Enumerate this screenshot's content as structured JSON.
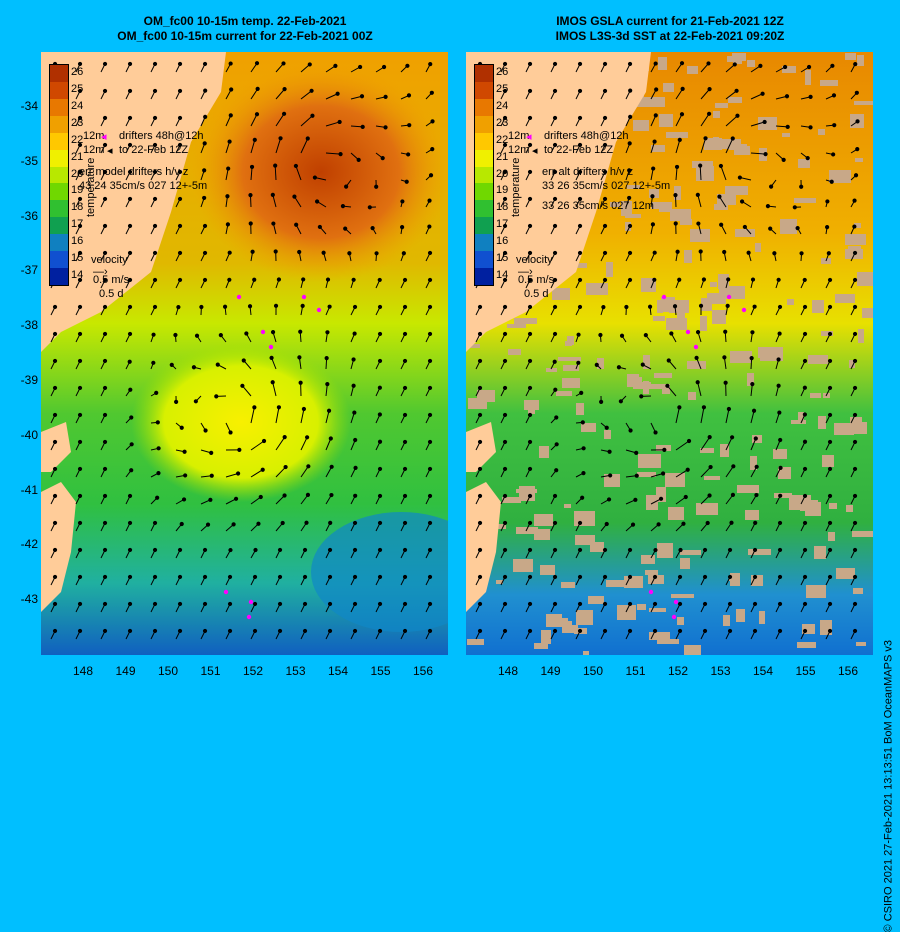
{
  "left_panel": {
    "title_line1": "OM_fc00 10-15m temp. 22-Feb-2021",
    "title_line2": "OM_fc00 10-15m current for 22-Feb-2021 00Z",
    "drifter_line1": "drifters 48h@12h",
    "drifter_line2": "to 22-Feb 12Z",
    "err_line1": "err model drifters h/v z",
    "err_line2": "43 24 35cm/s 027 12+-5m",
    "vel_title": "velocity",
    "vel_scale": "0.5 m/s",
    "vel_time": "0.5 d",
    "temp_label": "temperature",
    "marker_12m": "12m"
  },
  "right_panel": {
    "title_line1": "IMOS GSLA current for 21-Feb-2021 12Z",
    "title_line2": "IMOS L3S-3d SST at 22-Feb-2021 09:20Z",
    "drifter_line1": "drifters 48h@12h",
    "drifter_line2": "to 22-Feb 12Z",
    "err_line1": "err alt drifters h/v z",
    "err_line2": "33 26 35cm/s 027 12+-5m",
    "err_line3": "33 26 35cm/s 027 12m",
    "vel_title": "velocity",
    "vel_scale": "0.5 m/s",
    "vel_time": "0.5 d",
    "temp_label": "temperature",
    "marker_12m": "12m"
  },
  "legend_ticks": [
    "26",
    "25",
    "24",
    "23",
    "22",
    "21",
    "20",
    "19",
    "18",
    "17",
    "16",
    "15",
    "14"
  ],
  "legend_colors": [
    "#b03000",
    "#d04800",
    "#e87800",
    "#f0a000",
    "#ffc800",
    "#f0f000",
    "#b8e800",
    "#70d800",
    "#30c030",
    "#10a050",
    "#1080c0",
    "#1050d0",
    "#0020a0"
  ],
  "x_ticks": [
    "148",
    "149",
    "150",
    "151",
    "152",
    "153",
    "154",
    "155",
    "156"
  ],
  "y_ticks": [
    "-34",
    "-35",
    "-36",
    "-37",
    "-38",
    "-39",
    "-40",
    "-41",
    "-42",
    "-43"
  ],
  "credit": "© CSIRO 2021   27-Feb-2021 13:13:51 BoM OceanMAPS v3",
  "colors": {
    "land": "#ffcc99",
    "background": "#00bfff",
    "drifter": "#ff00ff",
    "no_data": "#c8a888"
  }
}
